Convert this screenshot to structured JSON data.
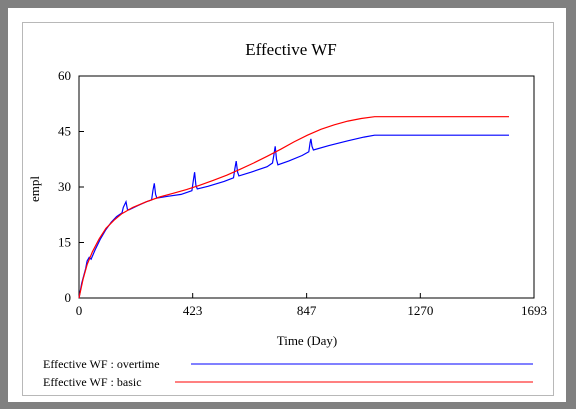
{
  "chart_data": {
    "type": "line",
    "title": "Effective WF",
    "xlabel": "Time (Day)",
    "ylabel": "empl",
    "xlim": [
      0,
      1693
    ],
    "ylim": [
      0,
      60
    ],
    "x_ticks": [
      0,
      423,
      847,
      1270,
      1693
    ],
    "y_ticks": [
      0,
      15,
      30,
      45,
      60
    ],
    "x_tick_labels": [
      "0",
      "423",
      "847",
      "1270",
      "1693"
    ],
    "y_tick_labels": [
      "0",
      "15",
      "30",
      "45",
      "60"
    ],
    "grid": false,
    "legend_position": "bottom",
    "series": [
      {
        "name": "Effective WF : overtime",
        "color": "#0000ff",
        "points": [
          [
            0,
            0
          ],
          [
            10,
            4
          ],
          [
            25,
            8
          ],
          [
            30,
            10
          ],
          [
            38,
            11
          ],
          [
            45,
            10.5
          ],
          [
            60,
            13
          ],
          [
            80,
            16
          ],
          [
            100,
            18.5
          ],
          [
            120,
            20.5
          ],
          [
            140,
            22
          ],
          [
            160,
            23
          ],
          [
            165,
            24.5
          ],
          [
            175,
            26
          ],
          [
            180,
            24
          ],
          [
            185,
            23.8
          ],
          [
            220,
            25
          ],
          [
            250,
            26
          ],
          [
            270,
            26.5
          ],
          [
            275,
            29
          ],
          [
            280,
            31
          ],
          [
            285,
            28
          ],
          [
            290,
            27
          ],
          [
            330,
            27.5
          ],
          [
            380,
            28
          ],
          [
            420,
            29
          ],
          [
            425,
            31.5
          ],
          [
            430,
            34
          ],
          [
            435,
            30.5
          ],
          [
            440,
            29.5
          ],
          [
            480,
            30.2
          ],
          [
            540,
            31.5
          ],
          [
            575,
            32.5
          ],
          [
            580,
            35
          ],
          [
            585,
            37
          ],
          [
            590,
            34
          ],
          [
            595,
            33
          ],
          [
            640,
            34
          ],
          [
            700,
            35.5
          ],
          [
            720,
            36.5
          ],
          [
            725,
            38.5
          ],
          [
            730,
            41
          ],
          [
            735,
            37.5
          ],
          [
            740,
            36
          ],
          [
            780,
            37
          ],
          [
            830,
            38.5
          ],
          [
            855,
            39.5
          ],
          [
            860,
            42
          ],
          [
            863,
            43
          ],
          [
            867,
            41
          ],
          [
            872,
            40
          ],
          [
            930,
            41.2
          ],
          [
            1000,
            42.5
          ],
          [
            1060,
            43.5
          ],
          [
            1100,
            44
          ],
          [
            1300,
            44
          ],
          [
            1600,
            44
          ]
        ]
      },
      {
        "name": "Effective WF : basic",
        "color": "#ff0000",
        "points": [
          [
            0,
            0
          ],
          [
            15,
            5
          ],
          [
            30,
            9
          ],
          [
            50,
            12.5
          ],
          [
            75,
            16
          ],
          [
            100,
            18.8
          ],
          [
            130,
            21
          ],
          [
            160,
            22.8
          ],
          [
            200,
            24.5
          ],
          [
            250,
            26
          ],
          [
            300,
            27.3
          ],
          [
            350,
            28.3
          ],
          [
            400,
            29.3
          ],
          [
            450,
            30.5
          ],
          [
            500,
            31.8
          ],
          [
            550,
            33.2
          ],
          [
            600,
            34.8
          ],
          [
            650,
            36.5
          ],
          [
            700,
            38.3
          ],
          [
            750,
            40.2
          ],
          [
            800,
            42.2
          ],
          [
            850,
            44
          ],
          [
            900,
            45.6
          ],
          [
            950,
            46.8
          ],
          [
            1000,
            47.8
          ],
          [
            1050,
            48.5
          ],
          [
            1100,
            49
          ],
          [
            1150,
            49
          ],
          [
            1300,
            49
          ],
          [
            1600,
            49
          ]
        ]
      }
    ]
  }
}
